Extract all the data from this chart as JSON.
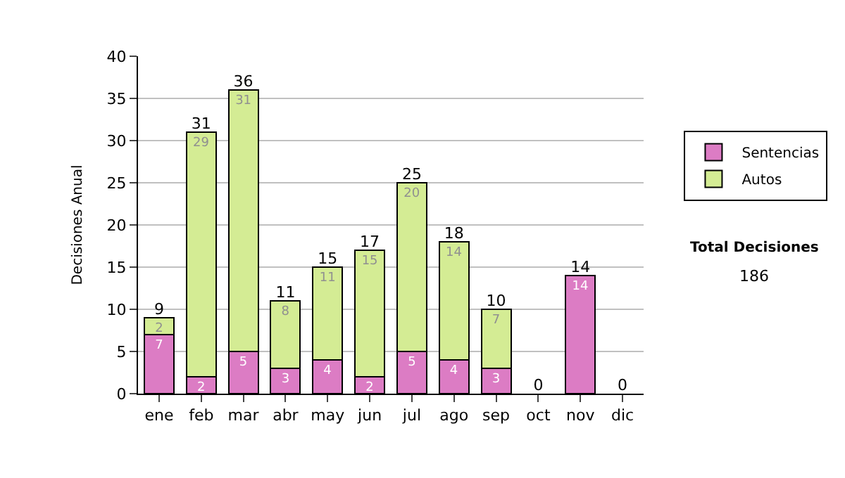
{
  "chart_data": {
    "type": "bar",
    "stacked": true,
    "ylabel": "Decisiones Anual",
    "categories": [
      "ene",
      "feb",
      "mar",
      "abr",
      "may",
      "jun",
      "jul",
      "ago",
      "sep",
      "oct",
      "nov",
      "dic"
    ],
    "series": [
      {
        "name": "Sentencias",
        "color": "#dc7cc4",
        "values": [
          7,
          2,
          5,
          3,
          4,
          2,
          5,
          4,
          3,
          0,
          14,
          0
        ],
        "value_labels": [
          "7",
          "2",
          "5",
          "3",
          "4",
          "2",
          "5",
          "4",
          "3",
          null,
          "14",
          null
        ]
      },
      {
        "name": "Autos",
        "color": "#d4ec94",
        "values": [
          2,
          29,
          31,
          8,
          11,
          15,
          20,
          14,
          7,
          0,
          0,
          0
        ],
        "value_labels": [
          "2",
          "29",
          "31",
          "8",
          "11",
          "15",
          "20",
          "14",
          "7",
          null,
          null,
          null
        ]
      }
    ],
    "totals": [
      "9",
      "31",
      "36",
      "11",
      "15",
      "17",
      "25",
      "18",
      "10",
      "0",
      "14",
      "0"
    ],
    "ylim": [
      0,
      40
    ],
    "yticks": [
      0,
      5,
      10,
      15,
      20,
      25,
      30,
      35,
      40
    ],
    "grid": "y",
    "legend": "right",
    "annotations": [
      "Total Decisiones",
      "186"
    ]
  }
}
